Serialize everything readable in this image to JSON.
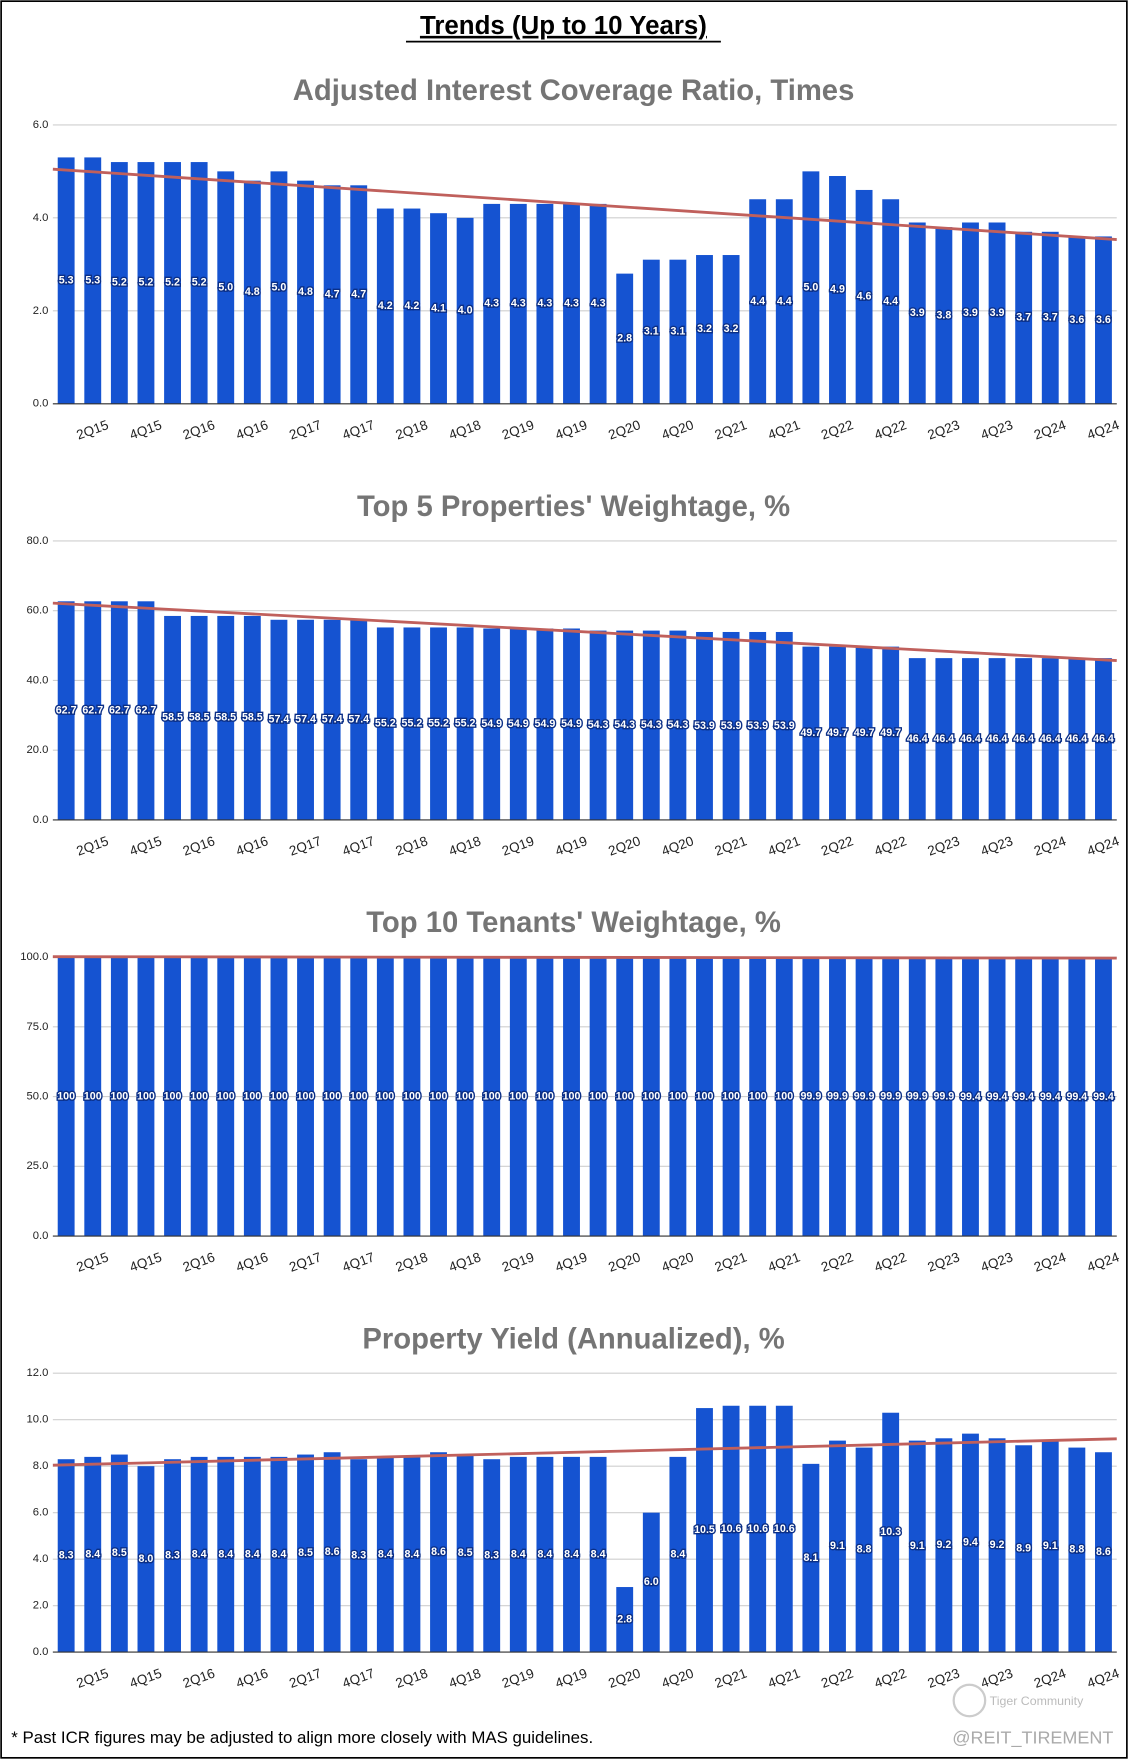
{
  "header": {
    "title": "Trends (Up to 10 Years)"
  },
  "chart_data": [
    {
      "type": "bar",
      "title": "Adjusted Interest Coverage Ratio, Times",
      "categories": [
        null,
        "2Q15",
        null,
        "4Q15",
        null,
        "2Q16",
        null,
        "4Q16",
        null,
        "2Q17",
        null,
        "4Q17",
        null,
        "2Q18",
        null,
        "4Q18",
        null,
        "2Q19",
        null,
        "4Q19",
        null,
        "2Q20",
        null,
        "4Q20",
        null,
        "2Q21",
        null,
        "4Q21",
        null,
        "2Q22",
        null,
        "4Q22",
        null,
        "2Q23",
        null,
        "4Q23",
        null,
        "2Q24",
        null,
        "4Q24"
      ],
      "values": [
        5.3,
        5.3,
        5.2,
        5.2,
        5.2,
        5.2,
        5.0,
        4.8,
        5.0,
        4.8,
        4.7,
        4.7,
        4.2,
        4.2,
        4.1,
        4.0,
        4.3,
        4.3,
        4.3,
        4.3,
        4.3,
        2.8,
        3.1,
        3.1,
        3.2,
        3.2,
        4.4,
        4.4,
        5.0,
        4.9,
        4.6,
        4.4,
        3.9,
        3.8,
        3.9,
        3.9,
        3.7,
        3.7,
        3.6,
        3.6
      ],
      "value_labels": [
        "5.3",
        "5.3",
        "5.2",
        "5.2",
        "5.2",
        "5.2",
        "5.0",
        "4.8",
        "5.0",
        "4.8",
        "4.7",
        "4.7",
        "4.2",
        "4.2",
        "4.1",
        "4.0",
        "4.3",
        "4.3",
        "4.3",
        "4.3",
        "4.3",
        "2.8",
        "3.1",
        "3.1",
        "3.2",
        "3.2",
        "4.4",
        "4.4",
        "5.0",
        "4.9",
        "4.6",
        "4.4",
        "3.9",
        "3.8",
        "3.9",
        "3.9",
        "3.7",
        "3.7",
        "3.6",
        "3.6"
      ],
      "color": "#1553d1",
      "trendline": true,
      "trendline_color": "#c0605c",
      "ylim": [
        0,
        6
      ],
      "yticks": [
        {
          "value": 0,
          "label": "0.0"
        },
        {
          "value": 2,
          "label": "2.0"
        },
        {
          "value": 4,
          "label": "4.0"
        },
        {
          "value": 6,
          "label": "6.0"
        }
      ],
      "grid": true
    },
    {
      "type": "bar",
      "title": "Top 5 Properties' Weightage, %",
      "categories": [
        null,
        "2Q15",
        null,
        "4Q15",
        null,
        "2Q16",
        null,
        "4Q16",
        null,
        "2Q17",
        null,
        "4Q17",
        null,
        "2Q18",
        null,
        "4Q18",
        null,
        "2Q19",
        null,
        "4Q19",
        null,
        "2Q20",
        null,
        "4Q20",
        null,
        "2Q21",
        null,
        "4Q21",
        null,
        "2Q22",
        null,
        "4Q22",
        null,
        "2Q23",
        null,
        "4Q23",
        null,
        "2Q24",
        null,
        "4Q24"
      ],
      "values": [
        62.7,
        62.7,
        62.7,
        62.7,
        58.5,
        58.5,
        58.5,
        58.5,
        57.4,
        57.4,
        57.4,
        57.4,
        55.2,
        55.2,
        55.2,
        55.2,
        54.9,
        54.9,
        54.9,
        54.9,
        54.3,
        54.3,
        54.3,
        54.3,
        53.9,
        53.9,
        53.9,
        53.9,
        49.7,
        49.7,
        49.7,
        49.7,
        46.4,
        46.4,
        46.4,
        46.4,
        46.4,
        46.4,
        46.4,
        46.4
      ],
      "color": "#1553d1",
      "trendline": true,
      "trendline_color": "#c0605c",
      "ylim": [
        0,
        80
      ],
      "yticks": [
        {
          "value": 0,
          "label": "0.0"
        },
        {
          "value": 20,
          "label": "20.0"
        },
        {
          "value": 40,
          "label": "40.0"
        },
        {
          "value": 60,
          "label": "60.0"
        },
        {
          "value": 80,
          "label": "80.0"
        }
      ],
      "grid": true
    },
    {
      "type": "bar",
      "title": "Top 10 Tenants' Weightage, %",
      "categories": [
        null,
        "2Q15",
        null,
        "4Q15",
        null,
        "2Q16",
        null,
        "4Q16",
        null,
        "2Q17",
        null,
        "4Q17",
        null,
        "2Q18",
        null,
        "4Q18",
        null,
        "2Q19",
        null,
        "4Q19",
        null,
        "2Q20",
        null,
        "4Q20",
        null,
        "2Q21",
        null,
        "4Q21",
        null,
        "2Q22",
        null,
        "4Q22",
        null,
        "2Q23",
        null,
        "4Q23",
        null,
        "2Q24",
        null,
        "4Q24"
      ],
      "values": [
        100,
        100,
        100,
        100,
        100,
        100,
        100,
        100,
        100,
        100,
        100,
        100,
        100,
        100,
        100,
        100,
        100,
        100,
        100,
        100,
        100,
        100,
        100,
        100,
        100,
        100,
        100,
        100,
        99.9,
        99.9,
        99.9,
        99.9,
        99.9,
        99.9,
        99.4,
        99.4,
        99.4,
        99.4,
        99.4,
        99.4
      ],
      "color": "#1553d1",
      "trendline": true,
      "trendline_color": "#c0605c",
      "ylim": [
        0,
        100
      ],
      "yticks": [
        {
          "value": 0,
          "label": "0.0"
        },
        {
          "value": 25,
          "label": "25.0"
        },
        {
          "value": 50,
          "label": "50.0"
        },
        {
          "value": 75,
          "label": "75.0"
        },
        {
          "value": 100,
          "label": "100.0"
        }
      ],
      "grid": true
    },
    {
      "type": "bar",
      "title": "Property Yield (Annualized), %",
      "categories": [
        null,
        "2Q15",
        null,
        "4Q15",
        null,
        "2Q16",
        null,
        "4Q16",
        null,
        "2Q17",
        null,
        "4Q17",
        null,
        "2Q18",
        null,
        "4Q18",
        null,
        "2Q19",
        null,
        "4Q19",
        null,
        "2Q20",
        null,
        "4Q20",
        null,
        "2Q21",
        null,
        "4Q21",
        null,
        "2Q22",
        null,
        "4Q22",
        null,
        "2Q23",
        null,
        "4Q23",
        null,
        "2Q24",
        null,
        "4Q24"
      ],
      "values": [
        8.3,
        8.4,
        8.5,
        8.0,
        8.3,
        8.4,
        8.4,
        8.4,
        8.4,
        8.5,
        8.6,
        8.3,
        8.4,
        8.4,
        8.6,
        8.5,
        8.3,
        8.4,
        8.4,
        8.4,
        8.4,
        2.8,
        6.0,
        8.4,
        10.5,
        10.6,
        10.6,
        10.6,
        8.1,
        9.1,
        8.8,
        10.3,
        9.1,
        9.2,
        9.4,
        9.2,
        8.9,
        9.1,
        8.8,
        8.6
      ],
      "value_labels": [
        "8.3",
        "8.4",
        "8.5",
        "8.0",
        "8.3",
        "8.4",
        "8.4",
        "8.4",
        "8.4",
        "8.5",
        "8.6",
        "8.3",
        "8.4",
        "8.4",
        "8.6",
        "8.5",
        "8.3",
        "8.4",
        "8.4",
        "8.4",
        "8.4",
        "2.8",
        "6.0",
        "8.4",
        "10.5",
        "10.6",
        "10.6",
        "10.6",
        "8.1",
        "9.1",
        "8.8",
        "10.3",
        "9.1",
        "9.2",
        "9.4",
        "9.2",
        "8.9",
        "9.1",
        "8.8",
        "8.6"
      ],
      "color": "#1553d1",
      "trendline": true,
      "trendline_color": "#c0605c",
      "ylim": [
        0,
        12
      ],
      "yticks": [
        {
          "value": 0,
          "label": "0.0"
        },
        {
          "value": 2,
          "label": "2.0"
        },
        {
          "value": 4,
          "label": "4.0"
        },
        {
          "value": 6,
          "label": "6.0"
        },
        {
          "value": 8,
          "label": "8.0"
        },
        {
          "value": 10,
          "label": "10.0"
        },
        {
          "value": 12,
          "label": "12.0"
        }
      ],
      "grid": true
    }
  ],
  "footer": {
    "note": "* Past ICR figures may be adjusted to align more closely with MAS guidelines.",
    "watermark": "@REIT_TIREMENT",
    "logo": "Tiger Community"
  }
}
